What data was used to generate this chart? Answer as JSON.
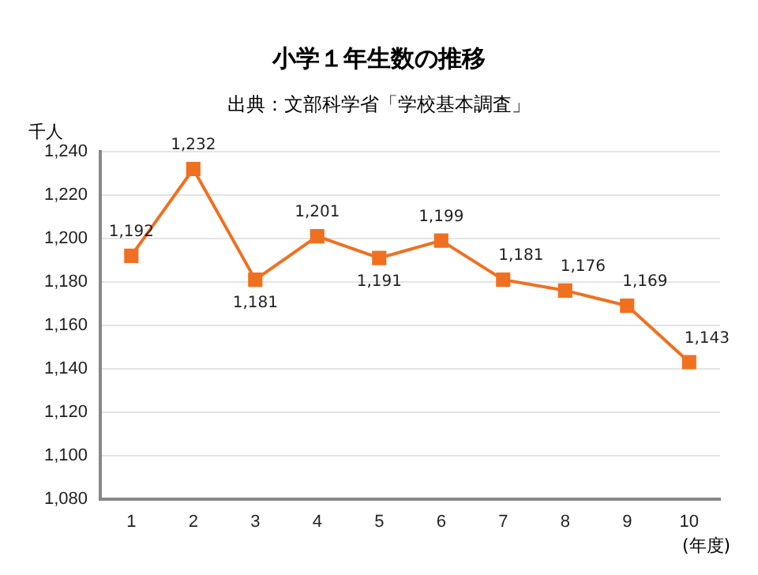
{
  "chart_data": {
    "type": "line",
    "title": "小学１年生数の推移",
    "subtitle": "出典：文部科学省「学校基本調査」",
    "ylabel": "千人",
    "xlabel": "(年度)",
    "categories": [
      "1",
      "2",
      "3",
      "4",
      "5",
      "6",
      "7",
      "8",
      "9",
      "10"
    ],
    "series": [
      {
        "color": "#f07020",
        "values": [
          1192,
          1232,
          1181,
          1201,
          1191,
          1199,
          1181,
          1176,
          1169,
          1143
        ],
        "value_labels": [
          "1,192",
          "1,232",
          "1,181",
          "1,201",
          "1,191",
          "1,199",
          "1,181",
          "1,176",
          "1,169",
          "1,143"
        ]
      }
    ],
    "ylim": [
      1080,
      1240
    ],
    "yticks": [
      {
        "value": 1080,
        "label": "1,080"
      },
      {
        "value": 1100,
        "label": "1,100"
      },
      {
        "value": 1120,
        "label": "1,120"
      },
      {
        "value": 1140,
        "label": "1,140"
      },
      {
        "value": 1160,
        "label": "1,160"
      },
      {
        "value": 1180,
        "label": "1,180"
      },
      {
        "value": 1200,
        "label": "1,200"
      },
      {
        "value": 1220,
        "label": "1,220"
      },
      {
        "value": 1240,
        "label": "1,240"
      }
    ],
    "grid": "y",
    "legend": false,
    "marker": "square",
    "line_style": "solid"
  }
}
